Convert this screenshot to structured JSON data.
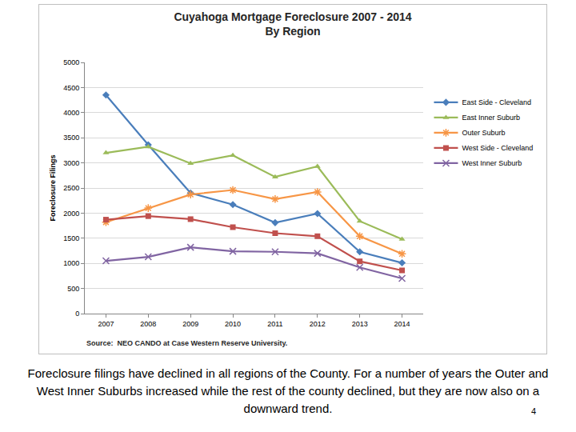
{
  "chart_data": {
    "type": "line",
    "title": "Cuyahoga Mortgage Foreclosure 2007 - 2014",
    "subtitle": "By Region",
    "y_label": "Foreclosure Filings",
    "source": "Source:  NEO CANDO at Case Western Reserve University.",
    "categories": [
      "2007",
      "2008",
      "2009",
      "2010",
      "2011",
      "2012",
      "2013",
      "2014"
    ],
    "series": [
      {
        "name": "East Side - Cleveland",
        "color": "#4a7ebb",
        "marker": "diamond",
        "values": [
          4350,
          3360,
          2400,
          2170,
          1810,
          1990,
          1230,
          1010
        ]
      },
      {
        "name": "East Inner Suburb",
        "color": "#9bbb59",
        "marker": "triangle",
        "values": [
          3200,
          3320,
          2990,
          3150,
          2720,
          2930,
          1840,
          1480
        ]
      },
      {
        "name": "Outer Suburb",
        "color": "#f79646",
        "marker": "asterisk",
        "values": [
          1820,
          2100,
          2370,
          2460,
          2280,
          2420,
          1540,
          1190
        ]
      },
      {
        "name": "West Side - Cleveland",
        "color": "#c0504d",
        "marker": "square",
        "values": [
          1870,
          1940,
          1880,
          1720,
          1600,
          1540,
          1040,
          860
        ]
      },
      {
        "name": "West Inner Suburb",
        "color": "#8064a2",
        "marker": "x",
        "values": [
          1050,
          1130,
          1320,
          1240,
          1230,
          1200,
          920,
          700
        ]
      }
    ],
    "ylim": [
      0,
      5000
    ],
    "yticks": [
      0,
      500,
      1000,
      1500,
      2000,
      2500,
      3000,
      3500,
      4000,
      4500,
      5000
    ],
    "grid": true,
    "legend": "right"
  },
  "caption": "Foreclosure filings have declined in all regions of the County.  For a number of years the Outer and West Inner Suburbs increased while the rest of the county declined, but they are now also on a downward trend.",
  "page_number": 4
}
